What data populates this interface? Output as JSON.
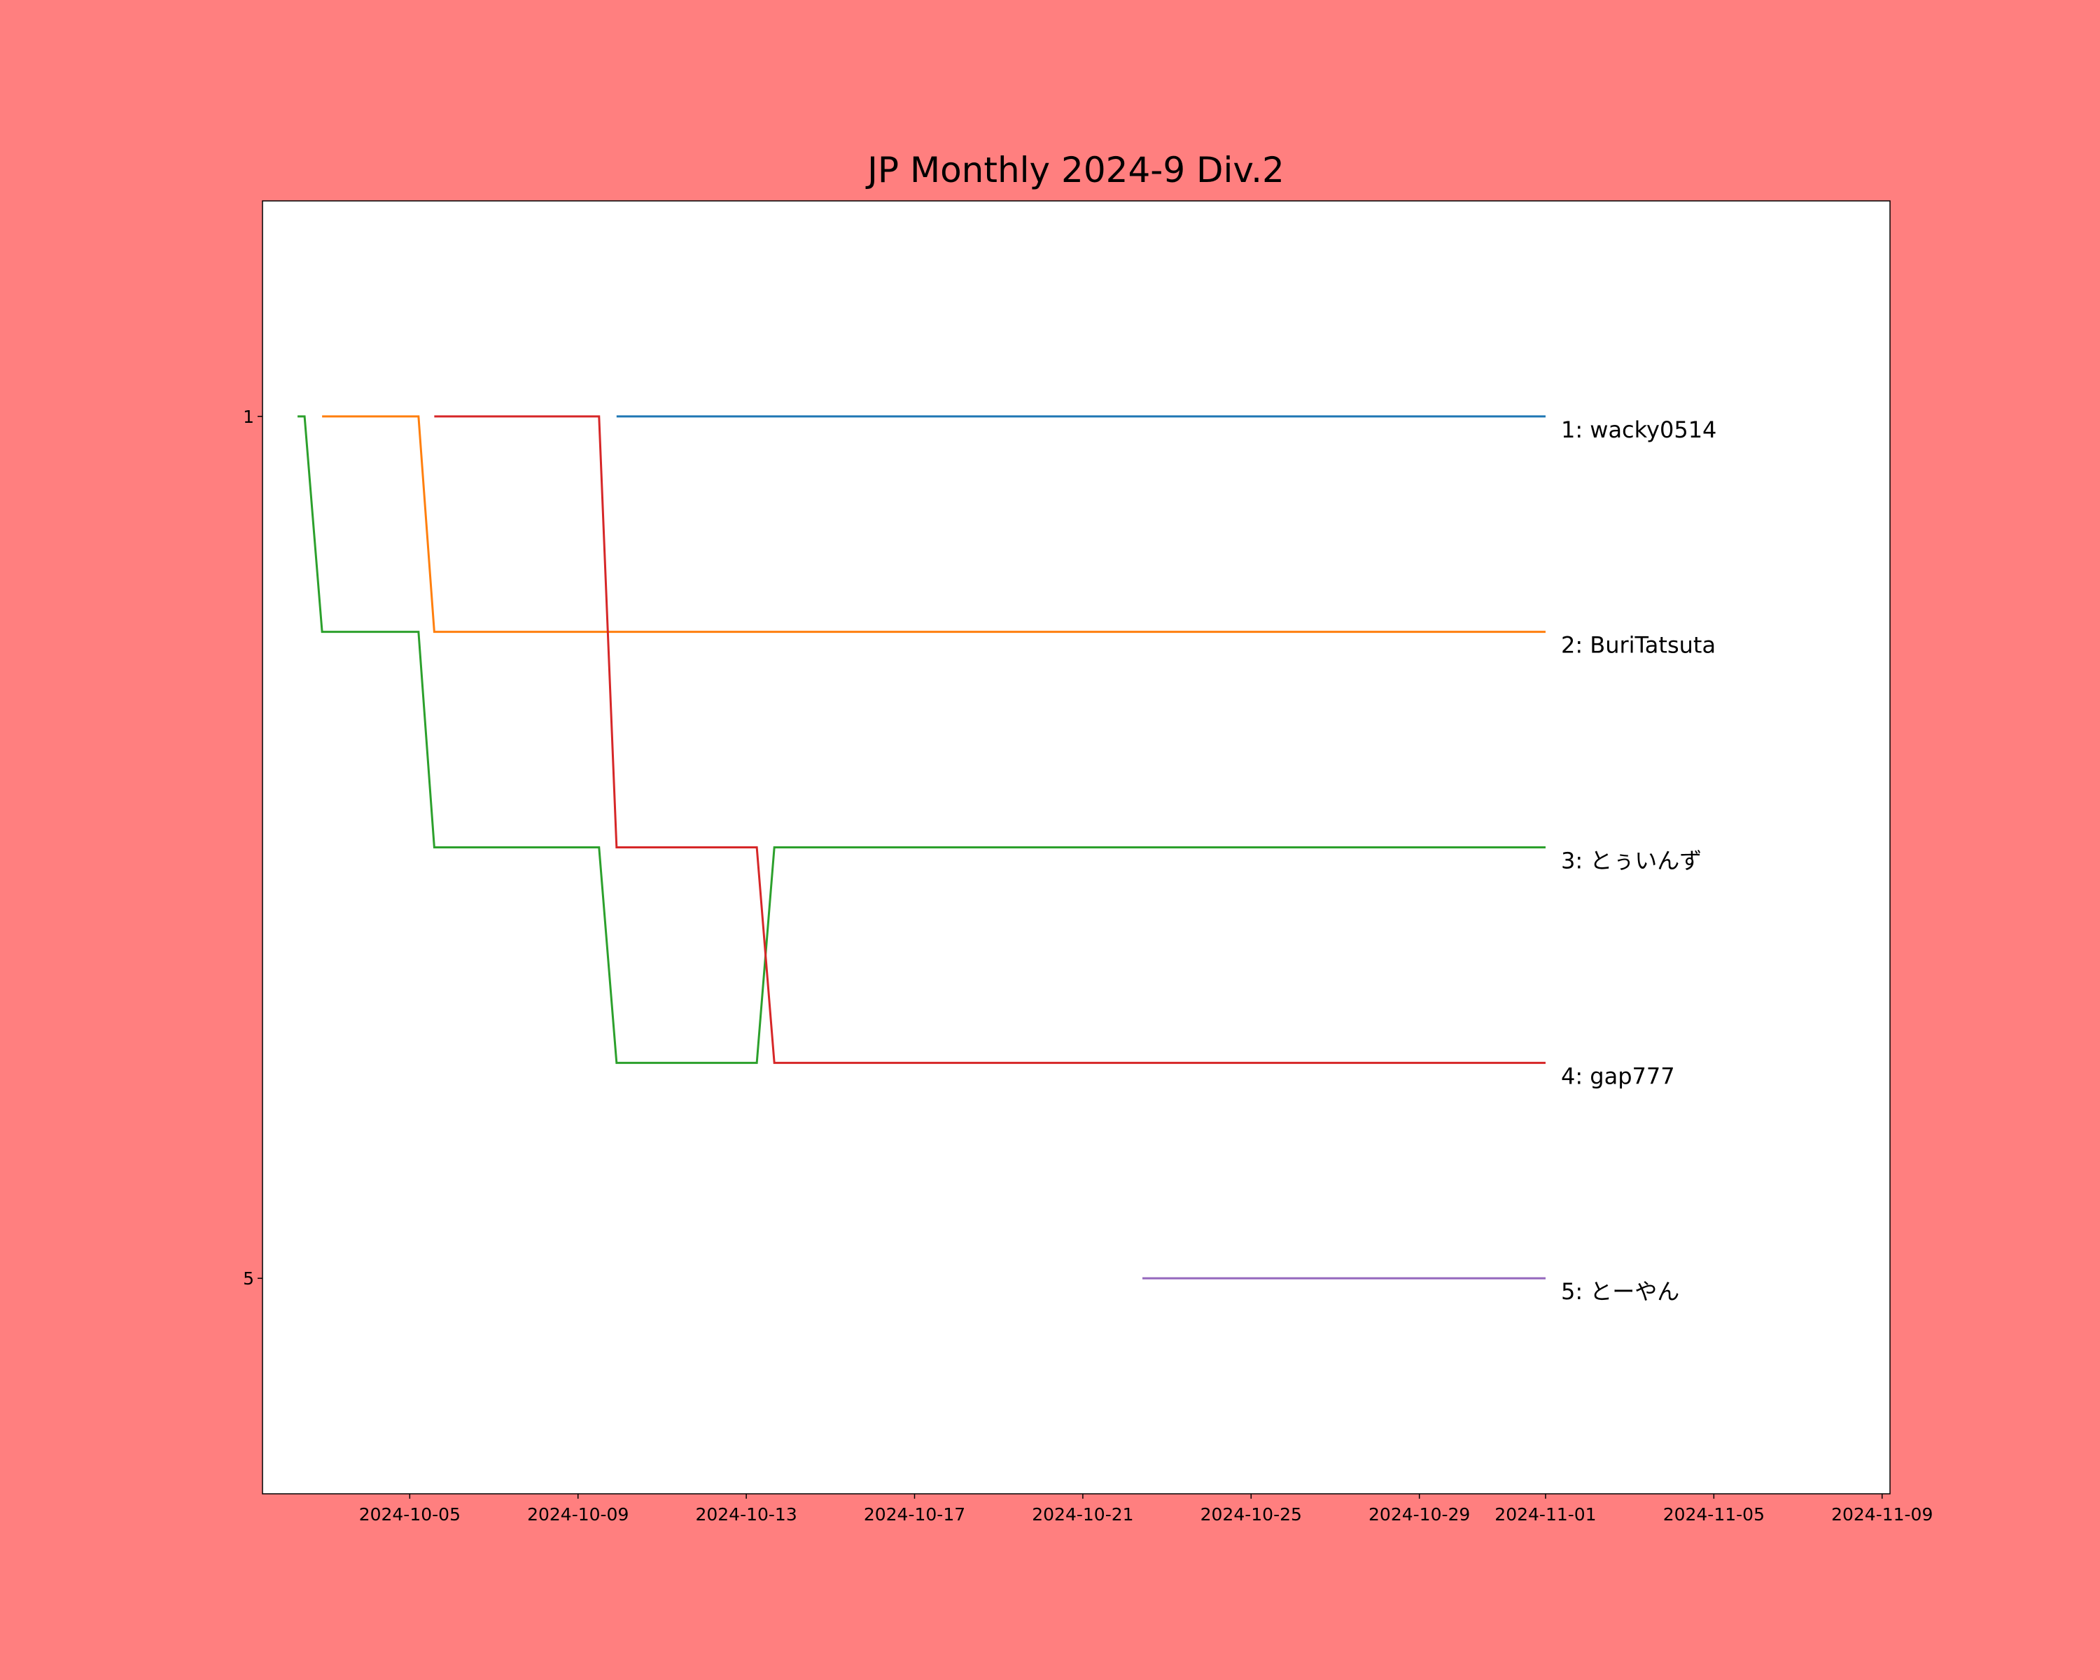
{
  "chart_data": {
    "type": "line",
    "title": "JP Monthly 2024-9 Div.2",
    "xlim": [
      "2024-10-01T12:00",
      "2024-11-09T04:30"
    ],
    "xticks": [
      "2024-10-05",
      "2024-10-09",
      "2024-10-13",
      "2024-10-17",
      "2024-10-21",
      "2024-10-25",
      "2024-10-29",
      "2024-11-01",
      "2024-11-05",
      "2024-11-09"
    ],
    "ylim": [
      6,
      0
    ],
    "yticks": [
      1,
      5
    ],
    "series": [
      {
        "name": "1: wacky0514",
        "color": "#1f77b4",
        "x": [
          "2024-10-09T22:00",
          "2024-11-01T00:00"
        ],
        "values": [
          1,
          1
        ]
      },
      {
        "name": "2: BuriTatsuta",
        "color": "#ff7f0e",
        "x": [
          "2024-10-02T22:00",
          "2024-10-05T05:00",
          "2024-10-05T14:00",
          "2024-11-01T00:00"
        ],
        "values": [
          1,
          1,
          2,
          2
        ]
      },
      {
        "name": "3: とぅいんず",
        "color": "#2ca02c",
        "x": [
          "2024-10-02T08:00",
          "2024-10-02T12:00",
          "2024-10-02T22:00",
          "2024-10-05T05:00",
          "2024-10-05T14:00",
          "2024-10-09T12:00",
          "2024-10-09T22:00",
          "2024-10-13T06:00",
          "2024-10-13T16:00",
          "2024-11-01T00:00"
        ],
        "values": [
          1,
          1,
          2,
          2,
          3,
          3,
          4,
          4,
          3,
          3
        ]
      },
      {
        "name": "4: gap777",
        "color": "#d62728",
        "x": [
          "2024-10-05T14:00",
          "2024-10-09T12:00",
          "2024-10-09T22:00",
          "2024-10-13T06:00",
          "2024-10-13T16:00",
          "2024-11-01T00:00"
        ],
        "values": [
          1,
          1,
          3,
          3,
          4,
          4
        ]
      },
      {
        "name": "5: とーやん",
        "color": "#9467bd",
        "x": [
          "2024-10-22T10:00",
          "2024-11-01T00:00"
        ],
        "values": [
          5,
          5
        ]
      }
    ]
  }
}
